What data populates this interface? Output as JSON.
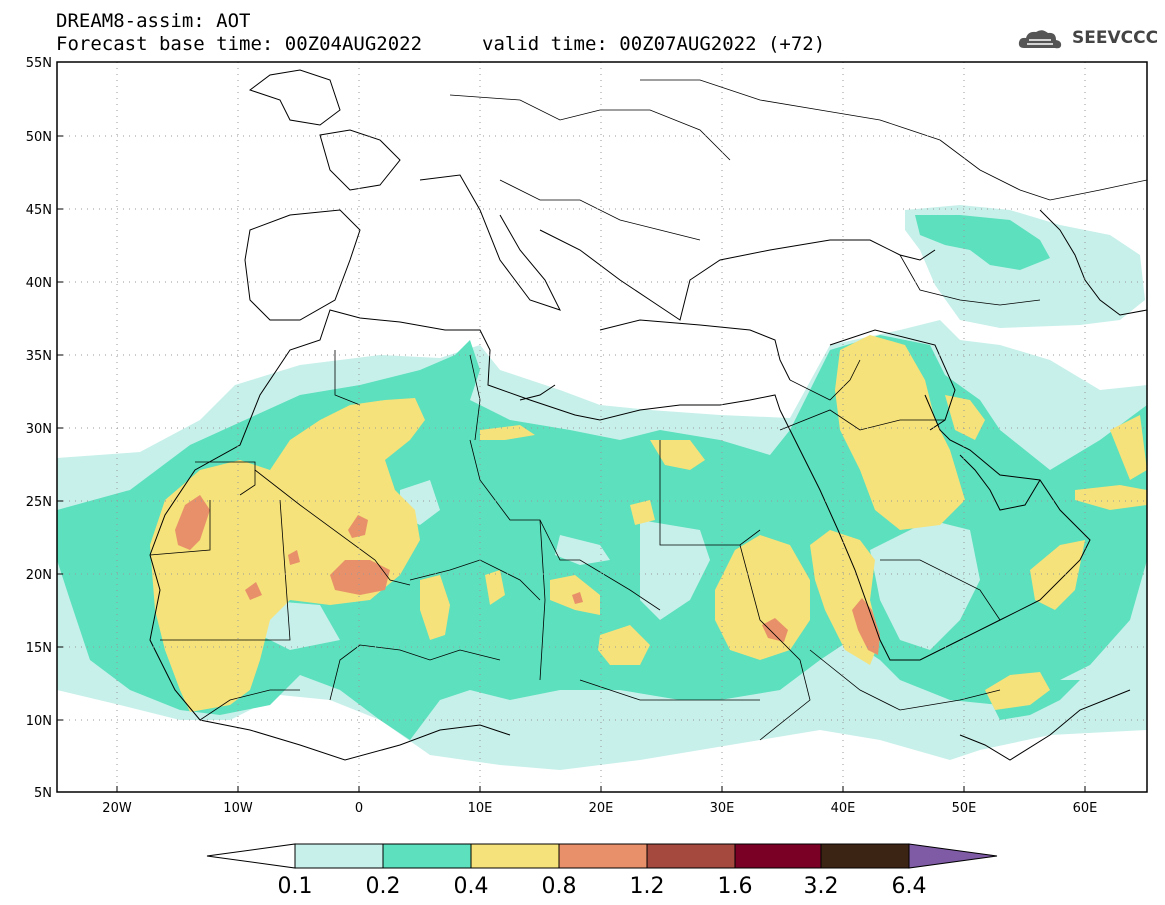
{
  "header": {
    "line1": "DREAM8-assim: AOT",
    "line2": "Forecast base time: 00Z04AUG2022",
    "valid": "valid time: 00Z07AUG2022 (+72)"
  },
  "logo": {
    "text": "SEEVCCC",
    "icon": "cloud-logo-icon"
  },
  "lat_labels": [
    "55N",
    "50N",
    "45N",
    "40N",
    "35N",
    "30N",
    "25N",
    "20N",
    "15N",
    "10N",
    "5N"
  ],
  "lon_labels": [
    "20W",
    "10W",
    "0",
    "10E",
    "20E",
    "30E",
    "40E",
    "50E",
    "60E"
  ],
  "map": {
    "lon_range": [
      -25,
      65
    ],
    "lat_range": [
      5,
      55
    ]
  },
  "colorbar": {
    "labels": [
      "0.1",
      "0.2",
      "0.4",
      "0.8",
      "1.2",
      "1.6",
      "3.2",
      "6.4"
    ],
    "colors": [
      "#ffffff",
      "#c7f0ea",
      "#5ce0bd",
      "#f5e27a",
      "#e89069",
      "#a5493e",
      "#7a0026",
      "#3c2415",
      "#7f5aa5"
    ]
  },
  "colors": {
    "level_0.1": "#c7f0ea",
    "level_0.2": "#5ce0bd",
    "level_0.4": "#f5e27a",
    "level_0.8": "#e89069"
  }
}
